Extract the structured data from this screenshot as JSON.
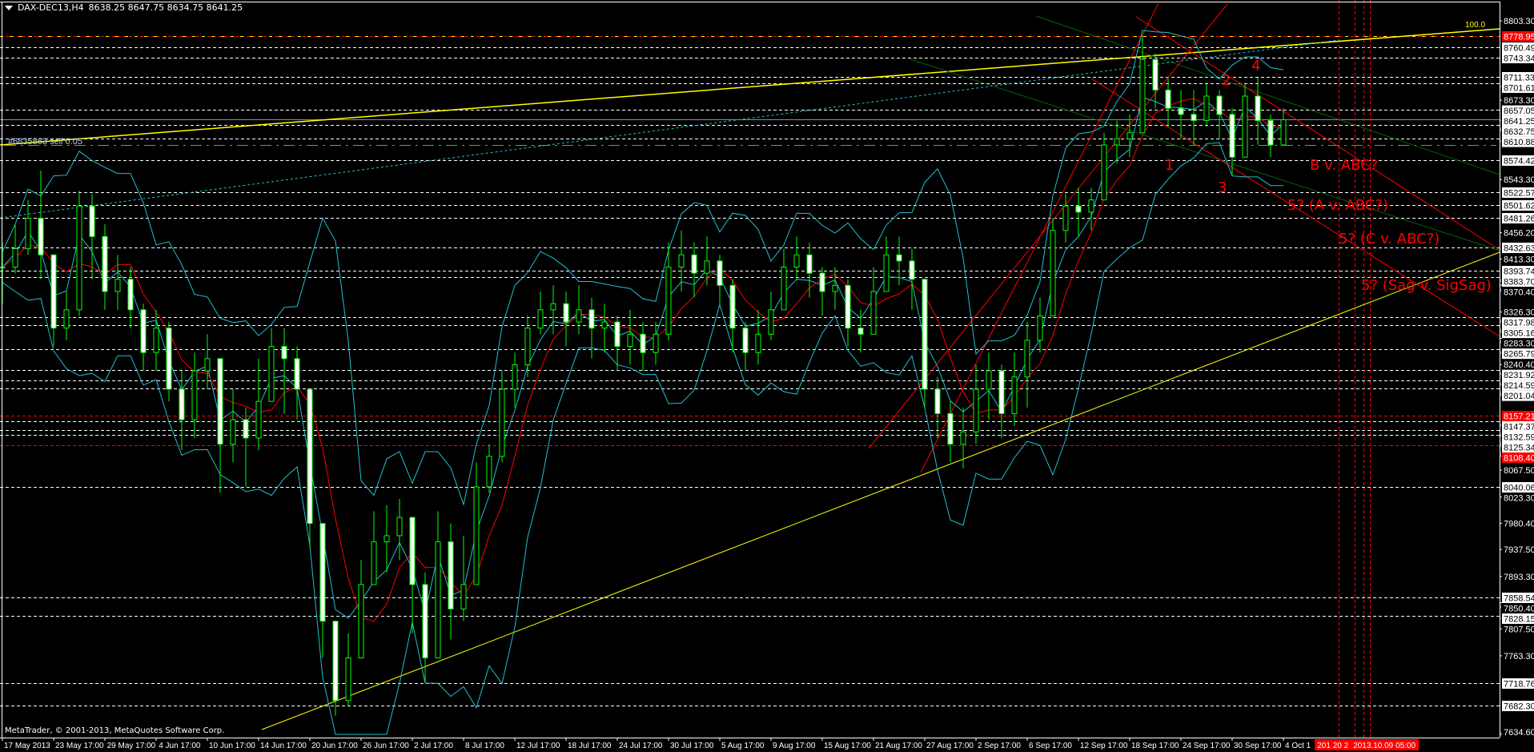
{
  "header": {
    "symbol": "DAX-DEC13,H4",
    "ohlc": "8638.25 8647.75 8634.75 8641.25"
  },
  "copyright": "MetaTrader, © 2001-2013, MetaQuotes Software Corp.",
  "order_label": "#6835863 sell 0.05",
  "fib_label": "100.0",
  "time_marker_label": "2013.10.09 05:00",
  "time_marker_partial": "201  20  2",
  "colors": {
    "background": "#000000",
    "candle": "#00ff00",
    "ma": "#ff0000",
    "bands": "#20c0d0",
    "trendline": "#ffff00",
    "channel_green": "#006400",
    "channel_red": "#ff0000",
    "level": "#ffffff",
    "level_red": "#ff0000",
    "current_price": "#8090a0"
  },
  "chart_data": {
    "type": "candlestick",
    "timeframe": "H4",
    "ylim": [
      7634.6,
      8803.3
    ],
    "current_price": 8641.25,
    "dates": [
      "2013-05-17",
      "2013-05-20",
      "2013-05-21",
      "2013-05-22",
      "2013-05-23",
      "2013-05-24",
      "2013-05-27",
      "2013-05-28",
      "2013-05-29",
      "2013-05-30",
      "2013-05-31",
      "2013-06-03",
      "2013-06-04",
      "2013-06-05",
      "2013-06-06",
      "2013-06-07",
      "2013-06-10",
      "2013-06-11",
      "2013-06-12",
      "2013-06-13",
      "2013-06-14",
      "2013-06-17",
      "2013-06-18",
      "2013-06-19",
      "2013-06-20",
      "2013-06-21",
      "2013-06-24",
      "2013-06-25",
      "2013-06-26",
      "2013-06-27",
      "2013-06-28",
      "2013-07-01",
      "2013-07-02",
      "2013-07-03",
      "2013-07-04",
      "2013-07-05",
      "2013-07-08",
      "2013-07-09",
      "2013-07-10",
      "2013-07-11",
      "2013-07-12",
      "2013-07-15",
      "2013-07-16",
      "2013-07-17",
      "2013-07-18",
      "2013-07-19",
      "2013-07-22",
      "2013-07-23",
      "2013-07-24",
      "2013-07-25",
      "2013-07-26",
      "2013-07-29",
      "2013-07-30",
      "2013-07-31",
      "2013-08-01",
      "2013-08-02",
      "2013-08-05",
      "2013-08-06",
      "2013-08-07",
      "2013-08-08",
      "2013-08-09",
      "2013-08-12",
      "2013-08-13",
      "2013-08-14",
      "2013-08-15",
      "2013-08-16",
      "2013-08-19",
      "2013-08-20",
      "2013-08-21",
      "2013-08-22",
      "2013-08-23",
      "2013-08-26",
      "2013-08-27",
      "2013-08-28",
      "2013-08-29",
      "2013-08-30",
      "2013-09-02",
      "2013-09-03",
      "2013-09-04",
      "2013-09-05",
      "2013-09-06",
      "2013-09-09",
      "2013-09-10",
      "2013-09-11",
      "2013-09-12",
      "2013-09-13",
      "2013-09-16",
      "2013-09-17",
      "2013-09-18",
      "2013-09-19",
      "2013-09-20",
      "2013-09-23",
      "2013-09-24",
      "2013-09-25",
      "2013-09-26",
      "2013-09-27",
      "2013-09-30",
      "2013-10-01",
      "2013-10-02",
      "2013-10-03",
      "2013-10-04"
    ],
    "close": [
      8400,
      8430,
      8480,
      8420,
      8300,
      8330,
      8500,
      8450,
      8360,
      8380,
      8330,
      8260,
      8300,
      8200,
      8150,
      8230,
      8250,
      8110,
      8150,
      8120,
      8180,
      8270,
      8250,
      8200,
      7980,
      7820,
      7690,
      7760,
      7880,
      7950,
      7960,
      7990,
      7880,
      7760,
      7950,
      7840,
      7880,
      8040,
      8090,
      8200,
      8240,
      8300,
      8330,
      8340,
      8310,
      8330,
      8300,
      8310,
      8270,
      8290,
      8260,
      8290,
      8400,
      8420,
      8390,
      8410,
      8370,
      8300,
      8260,
      8290,
      8330,
      8400,
      8420,
      8390,
      8360,
      8370,
      8300,
      8290,
      8360,
      8420,
      8410,
      8380,
      8200,
      8160,
      8110,
      8130,
      8200,
      8230,
      8160,
      8220,
      8280,
      8320,
      8460,
      8500,
      8490,
      8510,
      8600,
      8610,
      8620,
      8740,
      8690,
      8660,
      8650,
      8640,
      8680,
      8650,
      8580,
      8680,
      8640,
      8600,
      8641.25
    ],
    "high": [
      8440,
      8470,
      8510,
      8558,
      8420,
      8360,
      8525,
      8520,
      8470,
      8420,
      8400,
      8340,
      8330,
      8310,
      8230,
      8260,
      8290,
      8250,
      8200,
      8170,
      8250,
      8300,
      8300,
      8270,
      8200,
      7980,
      7800,
      7800,
      7920,
      8000,
      8010,
      8020,
      7990,
      7900,
      8000,
      7980,
      7960,
      8080,
      8110,
      8230,
      8260,
      8320,
      8360,
      8370,
      8360,
      8370,
      8350,
      8340,
      8320,
      8330,
      8310,
      8310,
      8440,
      8460,
      8440,
      8450,
      8420,
      8380,
      8310,
      8330,
      8360,
      8430,
      8450,
      8440,
      8400,
      8400,
      8380,
      8330,
      8400,
      8450,
      8450,
      8430,
      8380,
      8220,
      8180,
      8170,
      8240,
      8260,
      8240,
      8260,
      8310,
      8350,
      8480,
      8520,
      8530,
      8530,
      8620,
      8640,
      8650,
      8780,
      8750,
      8710,
      8690,
      8690,
      8700,
      8690,
      8660,
      8700,
      8710,
      8650,
      8660
    ],
    "low": [
      8340,
      8390,
      8420,
      8380,
      8270,
      8280,
      8320,
      8380,
      8330,
      8330,
      8300,
      8230,
      8230,
      8180,
      8100,
      8120,
      8200,
      8030,
      8080,
      8040,
      8100,
      8180,
      8160,
      8150,
      7940,
      7760,
      7665,
      7680,
      7760,
      7880,
      7900,
      7920,
      7800,
      7720,
      7760,
      7790,
      7820,
      7880,
      8030,
      8080,
      8170,
      8220,
      8290,
      8290,
      8270,
      8290,
      8250,
      8260,
      8230,
      8240,
      8230,
      8240,
      8280,
      8360,
      8350,
      8370,
      8340,
      8260,
      8230,
      8240,
      8280,
      8330,
      8380,
      8350,
      8320,
      8330,
      8270,
      8260,
      8300,
      8360,
      8370,
      8330,
      8170,
      8120,
      8080,
      8070,
      8110,
      8150,
      8120,
      8140,
      8170,
      8260,
      8320,
      8440,
      8450,
      8460,
      8540,
      8570,
      8580,
      8630,
      8660,
      8630,
      8610,
      8600,
      8630,
      8610,
      8550,
      8580,
      8600,
      8580,
      8600
    ],
    "time_labels": [
      {
        "date": "2013-05-17",
        "label": "17 May 2013"
      },
      {
        "date": "2013-05-23",
        "label": "23 May 17:00"
      },
      {
        "date": "2013-05-29",
        "label": "29 May 17:00"
      },
      {
        "date": "2013-06-04",
        "label": "4 Jun 17:00"
      },
      {
        "date": "2013-06-10",
        "label": "10 Jun 17:00"
      },
      {
        "date": "2013-06-14",
        "label": "14 Jun 17:00"
      },
      {
        "date": "2013-06-20",
        "label": "20 Jun 17:00"
      },
      {
        "date": "2013-06-26",
        "label": "26 Jun 17:00"
      },
      {
        "date": "2013-07-02",
        "label": "2 Jul 17:00"
      },
      {
        "date": "2013-07-08",
        "label": "8 Jul 17:00"
      },
      {
        "date": "2013-07-12",
        "label": "12 Jul 17:00"
      },
      {
        "date": "2013-07-18",
        "label": "18 Jul 17:00"
      },
      {
        "date": "2013-07-24",
        "label": "24 Jul 17:00"
      },
      {
        "date": "2013-07-30",
        "label": "30 Jul 17:00"
      },
      {
        "date": "2013-08-05",
        "label": "5 Aug 17:00"
      },
      {
        "date": "2013-08-09",
        "label": "9 Aug 17:00"
      },
      {
        "date": "2013-08-15",
        "label": "15 Aug 17:00"
      },
      {
        "date": "2013-08-21",
        "label": "21 Aug 17:00"
      },
      {
        "date": "2013-08-27",
        "label": "27 Aug 17:00"
      },
      {
        "date": "2013-09-02",
        "label": "2 Sep 17:00"
      },
      {
        "date": "2013-09-06",
        "label": "6 Sep 17:00"
      },
      {
        "date": "2013-09-12",
        "label": "12 Sep 17:00"
      },
      {
        "date": "2013-09-18",
        "label": "18 Sep 17:00"
      },
      {
        "date": "2013-09-24",
        "label": "24 Sep 17:00"
      },
      {
        "date": "2013-09-30",
        "label": "30 Sep 17:00"
      },
      {
        "date": "2013-10-04",
        "label": "4 Oct 1"
      }
    ],
    "price_ticks": [
      "8803.30",
      "8673.30",
      "8543.30",
      "8456.20",
      "8413.30",
      "8370.40",
      "8326.30",
      "8283.30",
      "8240.40",
      "8067.50",
      "8023.30",
      "7980.40",
      "7937.50",
      "7893.30",
      "7850.40",
      "7807.50",
      "7763.30",
      "7634.60"
    ],
    "levels": [
      {
        "price": "8778.95",
        "style": "red"
      },
      {
        "price": "8760.49",
        "style": "white"
      },
      {
        "price": "8743.34",
        "style": "white"
      },
      {
        "price": "8711.33",
        "style": "white"
      },
      {
        "price": "8701.61",
        "style": "white"
      },
      {
        "price": "8657.05",
        "style": "white"
      },
      {
        "price": "8632.75",
        "style": "white"
      },
      {
        "price": "8610.88",
        "style": "white"
      },
      {
        "price": "8574.42",
        "style": "white"
      },
      {
        "price": "8522.57",
        "style": "white"
      },
      {
        "price": "8501.62",
        "style": "white"
      },
      {
        "price": "8481.26",
        "style": "white"
      },
      {
        "price": "8432.63",
        "style": "white"
      },
      {
        "price": "8393.74",
        "style": "white"
      },
      {
        "price": "8383.70",
        "style": "white"
      },
      {
        "price": "8317.98",
        "style": "white"
      },
      {
        "price": "8305.16",
        "style": "white"
      },
      {
        "price": "8265.79",
        "style": "white"
      },
      {
        "price": "8231.92",
        "style": "white"
      },
      {
        "price": "8214.59",
        "style": "white"
      },
      {
        "price": "8201.04",
        "style": "white"
      },
      {
        "price": "8157.21",
        "style": "red"
      },
      {
        "price": "8147.37",
        "style": "white"
      },
      {
        "price": "8132.59",
        "style": "white"
      },
      {
        "price": "8125.34",
        "style": "white"
      },
      {
        "price": "8108.40",
        "style": "red"
      },
      {
        "price": "8040.06",
        "style": "white"
      },
      {
        "price": "7858.54",
        "style": "white"
      },
      {
        "price": "7828.15",
        "style": "white"
      },
      {
        "price": "7718.76",
        "style": "white"
      },
      {
        "price": "7682.30",
        "style": "white"
      }
    ],
    "signal_level": 8600,
    "wave_labels": [
      "1",
      "2",
      "3",
      "4"
    ],
    "annotations": [
      "B v. ABC?",
      "5? (A v. ABC?)",
      "5? (C v. ABC?)",
      "5? (Sag v. SigSag)"
    ]
  }
}
